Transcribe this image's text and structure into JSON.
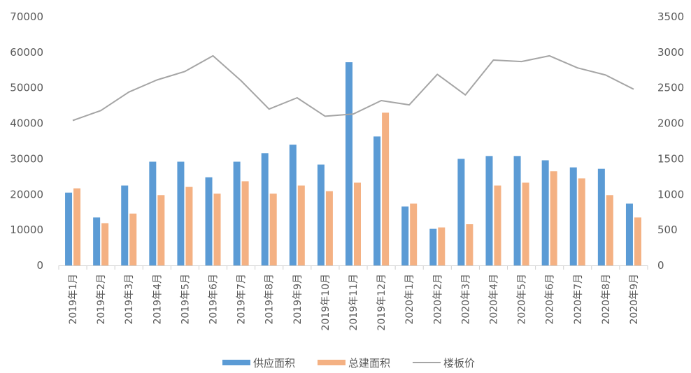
{
  "chart_data": {
    "type": "bar",
    "categories": [
      "2019年1月",
      "2019年2月",
      "2019年3月",
      "2019年4月",
      "2019年5月",
      "2019年6月",
      "2019年7月",
      "2019年8月",
      "2019年9月",
      "2019年10月",
      "2019年11月",
      "2019年12月",
      "2020年1月",
      "2020年2月",
      "2020年3月",
      "2020年4月",
      "2020年5月",
      "2020年6月",
      "2020年7月",
      "2020年8月",
      "2020年9月"
    ],
    "series": [
      {
        "name": "供应面积",
        "type": "bar",
        "axis": "left",
        "color": "#5b9bd5",
        "values": [
          20500,
          13500,
          22500,
          29200,
          29200,
          24800,
          29200,
          31600,
          34000,
          28400,
          57200,
          36300,
          16600,
          10300,
          30000,
          30800,
          30800,
          29600,
          27600,
          27200,
          17400
        ]
      },
      {
        "name": "总建面积",
        "type": "bar",
        "axis": "left",
        "color": "#f4b183",
        "values": [
          21700,
          11900,
          14600,
          19800,
          22100,
          20200,
          23700,
          20200,
          22500,
          20900,
          23300,
          43000,
          17400,
          10700,
          11600,
          22500,
          23300,
          26500,
          24500,
          19800,
          13500
        ]
      },
      {
        "name": "楼板价",
        "type": "line",
        "axis": "right",
        "color": "#a5a5a5",
        "values": [
          2040,
          2180,
          2440,
          2610,
          2730,
          2950,
          2600,
          2200,
          2360,
          2100,
          2130,
          2320,
          2260,
          2690,
          2400,
          2890,
          2870,
          2950,
          2780,
          2680,
          2480
        ]
      }
    ],
    "y_left": {
      "min": 0,
      "max": 70000,
      "step": 10000,
      "ticks": [
        "0",
        "10000",
        "20000",
        "30000",
        "40000",
        "50000",
        "60000",
        "70000"
      ]
    },
    "y_right": {
      "min": 0,
      "max": 3500,
      "step": 500,
      "ticks": [
        "0",
        "500",
        "1000",
        "1500",
        "2000",
        "2500",
        "3000",
        "3500"
      ]
    },
    "grid": false,
    "legend_position": "bottom-center",
    "title": "",
    "xlabel": "",
    "ylabel": ""
  }
}
